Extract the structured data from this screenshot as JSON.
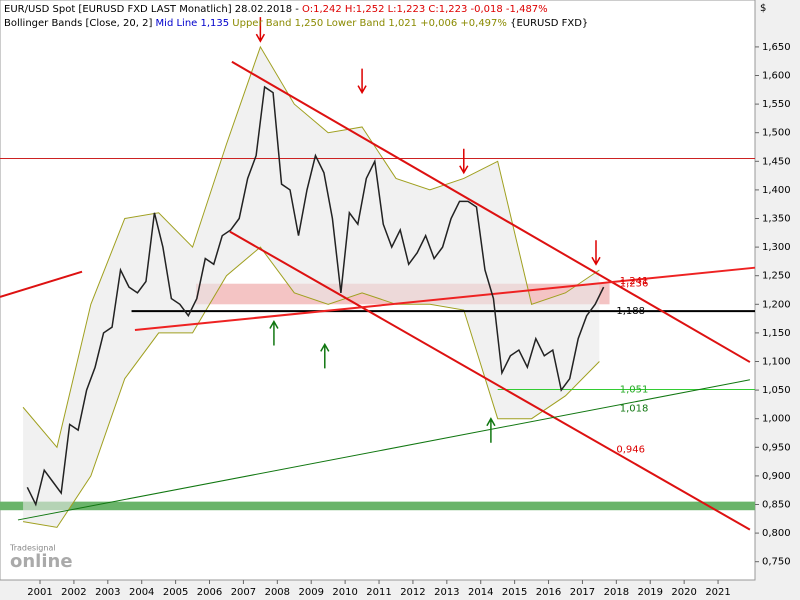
{
  "chart_data": {
    "type": "line",
    "header": [
      [
        {
          "text": "EUR/USD Spot [EURUSD FXD LAST Monatlich] 28.02.2018 - ",
          "color": "#000000"
        },
        {
          "text": "O:1,242 H:1,252 L:1,223 C:1,223 -0,018 -1,487%",
          "color": "#dd0000"
        }
      ],
      [
        {
          "text": "Bollinger Bands [Close, 20, 2] ",
          "color": "#000000"
        },
        {
          "text": "Mid Line 1,135 ",
          "color": "#0000cc"
        },
        {
          "text": "Upper Band 1,250 Lower Band 1,021 +0,006 +0,497% ",
          "color": "#8a8a00"
        },
        {
          "text": "{EURUSD FXD}",
          "color": "#000000"
        }
      ]
    ],
    "currency": "$",
    "logo": "online",
    "logo_small": "Tradesignal",
    "xlim": [
      2000.32,
      2022.59
    ],
    "ylim": [
      0.718,
      1.732
    ],
    "xticks": [
      {
        "value": 2001.5,
        "label": "2001"
      },
      {
        "value": 2002.5,
        "label": "2002"
      },
      {
        "value": 2003.5,
        "label": "2003"
      },
      {
        "value": 2004.5,
        "label": "2004"
      },
      {
        "value": 2005.5,
        "label": "2005"
      },
      {
        "value": 2006.5,
        "label": "2006"
      },
      {
        "value": 2007.5,
        "label": "2007"
      },
      {
        "value": 2008.5,
        "label": "2008"
      },
      {
        "value": 2009.5,
        "label": "2009"
      },
      {
        "value": 2010.5,
        "label": "2010"
      },
      {
        "value": 2011.5,
        "label": "2011"
      },
      {
        "value": 2012.5,
        "label": "2012"
      },
      {
        "value": 2013.5,
        "label": "2013"
      },
      {
        "value": 2014.5,
        "label": "2014"
      },
      {
        "value": 2015.5,
        "label": "2015"
      },
      {
        "value": 2016.5,
        "label": "2016"
      },
      {
        "value": 2017.5,
        "label": "2017"
      },
      {
        "value": 2018.5,
        "label": "2018"
      },
      {
        "value": 2019.5,
        "label": "2019"
      },
      {
        "value": 2020.5,
        "label": "2020"
      },
      {
        "value": 2021.5,
        "label": "2021"
      }
    ],
    "yticks": [
      {
        "value": 0.75,
        "label": "0,750"
      },
      {
        "value": 0.8,
        "label": "0,800"
      },
      {
        "value": 0.85,
        "label": "0,850"
      },
      {
        "value": 0.9,
        "label": "0,900"
      },
      {
        "value": 0.95,
        "label": "0,950"
      },
      {
        "value": 1.0,
        "label": "1,000"
      },
      {
        "value": 1.05,
        "label": "1,050"
      },
      {
        "value": 1.1,
        "label": "1,100"
      },
      {
        "value": 1.15,
        "label": "1,150"
      },
      {
        "value": 1.2,
        "label": "1,200"
      },
      {
        "value": 1.25,
        "label": "1,250"
      },
      {
        "value": 1.3,
        "label": "1,300"
      },
      {
        "value": 1.35,
        "label": "1,350"
      },
      {
        "value": 1.4,
        "label": "1,400"
      },
      {
        "value": 1.45,
        "label": "1,450"
      },
      {
        "value": 1.5,
        "label": "1,500"
      },
      {
        "value": 1.55,
        "label": "1,550"
      },
      {
        "value": 1.6,
        "label": "1,600"
      },
      {
        "value": 1.65,
        "label": "1,650"
      }
    ],
    "zones": [
      {
        "x": [
          2006.1,
          2018.3
        ],
        "y": [
          1.2,
          1.236
        ],
        "color": "#f4c4c4"
      },
      {
        "x": [
          2000.32,
          2022.59
        ],
        "y": [
          0.84,
          0.855
        ],
        "color": "#6ab46a"
      }
    ],
    "bands": {
      "x": [
        2001,
        2002,
        2003,
        2004,
        2005,
        2006,
        2007,
        2008,
        2009,
        2010,
        2011,
        2012,
        2013,
        2014,
        2015,
        2016,
        2017,
        2018
      ],
      "upper": [
        1.02,
        0.95,
        1.2,
        1.35,
        1.36,
        1.3,
        1.48,
        1.65,
        1.55,
        1.5,
        1.51,
        1.42,
        1.4,
        1.42,
        1.45,
        1.2,
        1.22,
        1.26
      ],
      "lower": [
        0.82,
        0.81,
        0.9,
        1.07,
        1.15,
        1.15,
        1.25,
        1.3,
        1.22,
        1.2,
        1.22,
        1.2,
        1.2,
        1.19,
        1.0,
        1.0,
        1.04,
        1.1
      ],
      "color": "#a0a020",
      "fill": "#e8e8e8"
    },
    "series": [
      {
        "name": "EUR/USD",
        "color": "#222222",
        "x": [
          2001.125,
          2001.375,
          2001.625,
          2001.875,
          2002.125,
          2002.375,
          2002.625,
          2002.875,
          2003.125,
          2003.375,
          2003.625,
          2003.875,
          2004.125,
          2004.375,
          2004.625,
          2004.875,
          2005.125,
          2005.375,
          2005.625,
          2005.875,
          2006.125,
          2006.375,
          2006.625,
          2006.875,
          2007.125,
          2007.375,
          2007.625,
          2007.875,
          2008.125,
          2008.375,
          2008.625,
          2008.875,
          2009.125,
          2009.375,
          2009.625,
          2009.875,
          2010.125,
          2010.375,
          2010.625,
          2010.875,
          2011.125,
          2011.375,
          2011.625,
          2011.875,
          2012.125,
          2012.375,
          2012.625,
          2012.875,
          2013.125,
          2013.375,
          2013.625,
          2013.875,
          2014.125,
          2014.375,
          2014.625,
          2014.875,
          2015.125,
          2015.375,
          2015.625,
          2015.875,
          2016.125,
          2016.375,
          2016.625,
          2016.875,
          2017.125,
          2017.375,
          2017.625,
          2017.875,
          2018.125
        ],
        "values": [
          0.88,
          0.85,
          0.91,
          0.89,
          0.87,
          0.99,
          0.98,
          1.05,
          1.09,
          1.15,
          1.16,
          1.26,
          1.23,
          1.22,
          1.24,
          1.36,
          1.3,
          1.21,
          1.2,
          1.18,
          1.21,
          1.28,
          1.27,
          1.32,
          1.33,
          1.35,
          1.42,
          1.46,
          1.58,
          1.57,
          1.41,
          1.4,
          1.32,
          1.4,
          1.46,
          1.43,
          1.35,
          1.22,
          1.36,
          1.34,
          1.42,
          1.45,
          1.34,
          1.3,
          1.33,
          1.27,
          1.29,
          1.32,
          1.28,
          1.3,
          1.35,
          1.38,
          1.38,
          1.37,
          1.26,
          1.21,
          1.08,
          1.11,
          1.12,
          1.09,
          1.14,
          1.11,
          1.12,
          1.05,
          1.07,
          1.14,
          1.18,
          1.2,
          1.23
        ]
      }
    ],
    "lines": [
      {
        "x": [
          2000.32,
          2022.59
        ],
        "y": [
          1.455,
          1.455
        ],
        "color": "#cc2222",
        "width": 1
      },
      {
        "x": [
          2004.2,
          2022.59
        ],
        "y": [
          1.188,
          1.188
        ],
        "color": "#000000",
        "width": 2
      },
      {
        "x": [
          2015.0,
          2022.59
        ],
        "y": [
          1.051,
          1.051
        ],
        "color": "#33cc33",
        "width": 1
      },
      {
        "x": [
          2000.32,
          2002.74
        ],
        "y": [
          1.213,
          1.257
        ],
        "color": "#dd1111",
        "width": 2
      },
      {
        "x": [
          2007.16,
          2022.44
        ],
        "y": [
          1.624,
          1.099
        ],
        "color": "#dd1111",
        "width": 2
      },
      {
        "x": [
          2007.1,
          2022.44
        ],
        "y": [
          1.327,
          0.806
        ],
        "color": "#dd1111",
        "width": 2
      },
      {
        "x": [
          2004.3,
          2022.59
        ],
        "y": [
          1.155,
          1.264
        ],
        "color": "#ee2222",
        "width": 2
      },
      {
        "x": [
          2000.85,
          2022.44
        ],
        "y": [
          0.823,
          1.068
        ],
        "color": "#117711",
        "width": 1
      }
    ],
    "level_labels": [
      {
        "x": 2018.6,
        "value": 1.241,
        "label": "1,241",
        "color": "#dd0000"
      },
      {
        "x": 2018.6,
        "value": 1.236,
        "label": "1,236",
        "color": "#dd0000"
      },
      {
        "x": 2018.5,
        "value": 1.188,
        "label": "1,188",
        "color": "#000000"
      },
      {
        "x": 2018.6,
        "value": 1.051,
        "label": "1,051",
        "color": "#22aa22"
      },
      {
        "x": 2018.6,
        "value": 1.018,
        "label": "1,018",
        "color": "#117711"
      },
      {
        "x": 2018.5,
        "value": 0.946,
        "label": "0,946",
        "color": "#dd0000"
      }
    ],
    "arrows": [
      {
        "x": 2008.0,
        "y": 1.66,
        "dir": "down",
        "color": "#dd0000"
      },
      {
        "x": 2011.0,
        "y": 1.57,
        "dir": "down",
        "color": "#dd0000"
      },
      {
        "x": 2014.0,
        "y": 1.43,
        "dir": "down",
        "color": "#dd0000"
      },
      {
        "x": 2017.9,
        "y": 1.27,
        "dir": "down",
        "color": "#dd0000"
      },
      {
        "x": 2008.4,
        "y": 1.17,
        "dir": "up",
        "color": "#117711"
      },
      {
        "x": 2009.9,
        "y": 1.13,
        "dir": "up",
        "color": "#117711"
      },
      {
        "x": 2014.8,
        "y": 1.0,
        "dir": "up",
        "color": "#117711"
      }
    ]
  }
}
